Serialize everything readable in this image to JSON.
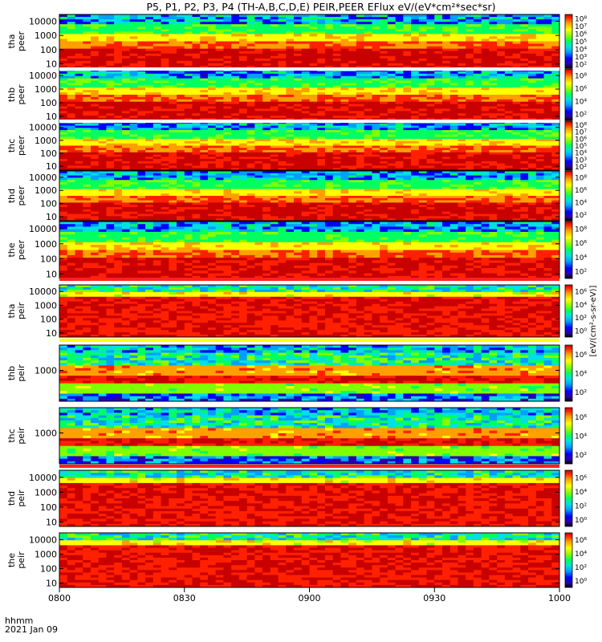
{
  "chart_data": {
    "type": "heatmap",
    "title": "P5, P1, P2, P3, P4 (TH-A,B,C,D,E) PEIR,PEER EFlux eV/(eV*cm²*sec*sr)",
    "xlabel": "hhmm",
    "date_label": "2021 Jan 09",
    "x_ticks": [
      "0800",
      "0830",
      "0900",
      "0930",
      "1000"
    ],
    "x_range": [
      "0800",
      "1000"
    ],
    "colorbar_label": "[eV/(cm²-s-sr-eV)]",
    "panels": [
      {
        "probe": "tha",
        "species": "peer",
        "y_ticks": [
          "10",
          "100",
          "1000",
          "10000"
        ],
        "ylim": [
          5,
          30000
        ],
        "log": true,
        "cbar_ticks": [
          "10²",
          "10³",
          "10⁴",
          "10⁵",
          "10⁶",
          "10⁷",
          "10⁸"
        ]
      },
      {
        "probe": "thb",
        "species": "peer",
        "y_ticks": [
          "10",
          "100",
          "1000",
          "10000"
        ],
        "ylim": [
          5,
          30000
        ],
        "log": true,
        "cbar_ticks": [
          "10²",
          "10⁴",
          "10⁶",
          "10⁸"
        ]
      },
      {
        "probe": "thc",
        "species": "peer",
        "y_ticks": [
          "10",
          "100",
          "1000",
          "10000"
        ],
        "ylim": [
          5,
          30000
        ],
        "log": true,
        "cbar_ticks": [
          "10²",
          "10³",
          "10⁴",
          "10⁵",
          "10⁶",
          "10⁷",
          "10⁸"
        ]
      },
      {
        "probe": "thd",
        "species": "peer",
        "y_ticks": [
          "10",
          "100",
          "1000",
          "10000"
        ],
        "ylim": [
          5,
          30000
        ],
        "log": true,
        "cbar_ticks": [
          "10²",
          "10⁴",
          "10⁶",
          "10⁸"
        ]
      },
      {
        "probe": "the",
        "species": "peer",
        "y_ticks": [
          "10",
          "100",
          "1000",
          "10000"
        ],
        "ylim": [
          5,
          30000
        ],
        "log": true,
        "cbar_ticks": [
          "10²",
          "10⁴",
          "10⁶",
          "10⁸"
        ]
      },
      {
        "probe": "tha",
        "species": "peir",
        "y_ticks": [
          "10",
          "100",
          "1000",
          "10000"
        ],
        "ylim": [
          5,
          30000
        ],
        "log": true,
        "cbar_ticks": [
          "10⁰",
          "10²",
          "10⁴",
          "10⁶"
        ]
      },
      {
        "probe": "thb",
        "species": "peir",
        "y_ticks": [
          "1000"
        ],
        "ylim": [
          5,
          30000
        ],
        "log": true,
        "cbar_ticks": [
          "10²",
          "10⁴",
          "10⁶"
        ]
      },
      {
        "probe": "thc",
        "species": "peir",
        "y_ticks": [
          "1000"
        ],
        "ylim": [
          5,
          30000
        ],
        "log": true,
        "cbar_ticks": [
          "10²",
          "10⁴",
          "10⁶"
        ]
      },
      {
        "probe": "thd",
        "species": "peir",
        "y_ticks": [
          "10",
          "100",
          "1000",
          "10000"
        ],
        "ylim": [
          5,
          30000
        ],
        "log": true,
        "cbar_ticks": [
          "10⁰",
          "10²",
          "10⁴",
          "10⁶"
        ]
      },
      {
        "probe": "the",
        "species": "peir",
        "y_ticks": [
          "10",
          "100",
          "1000",
          "10000"
        ],
        "ylim": [
          5,
          30000
        ],
        "log": true,
        "cbar_ticks": [
          "10⁰",
          "10²",
          "10⁴",
          "10⁶"
        ]
      }
    ],
    "colormap": [
      "#000000",
      "#2a00a8",
      "#0000ff",
      "#00a0ff",
      "#00e0e0",
      "#00ff60",
      "#80ff00",
      "#ffff00",
      "#ffa000",
      "#ff2000",
      "#c80000"
    ]
  }
}
